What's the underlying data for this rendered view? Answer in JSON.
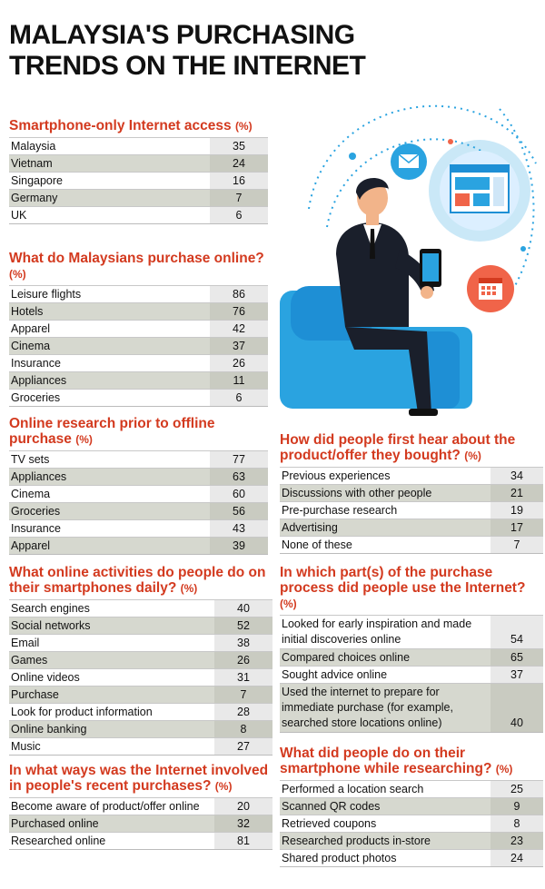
{
  "title": "MALAYSIA'S PURCHASING TRENDS ON THE INTERNET",
  "colors": {
    "title_red": "#d33a1f",
    "accent_blue": "#1e8fd5",
    "sofa_blue": "#2aa3e0"
  },
  "chart_data": [
    {
      "type": "table",
      "title": "Smartphone-only Internet access",
      "unit": "(%)",
      "rows": [
        {
          "label": "Malaysia",
          "value": "35"
        },
        {
          "label": "Vietnam",
          "value": "24"
        },
        {
          "label": "Singapore",
          "value": "16"
        },
        {
          "label": "Germany",
          "value": "7"
        },
        {
          "label": "UK",
          "value": "6"
        }
      ]
    },
    {
      "type": "table",
      "title": "What do Malaysians purchase online?",
      "unit": "(%)",
      "rows": [
        {
          "label": "Leisure flights",
          "value": "86"
        },
        {
          "label": "Hotels",
          "value": "76"
        },
        {
          "label": "Apparel",
          "value": "42"
        },
        {
          "label": "Cinema",
          "value": "37"
        },
        {
          "label": "Insurance",
          "value": "26"
        },
        {
          "label": "Appliances",
          "value": "11"
        },
        {
          "label": "Groceries",
          "value": "6"
        }
      ]
    },
    {
      "type": "table",
      "title": "Online research prior to offline purchase",
      "unit": "(%)",
      "rows": [
        {
          "label": "TV sets",
          "value": "77"
        },
        {
          "label": "Appliances",
          "value": "63"
        },
        {
          "label": "Cinema",
          "value": "60"
        },
        {
          "label": "Groceries",
          "value": "56"
        },
        {
          "label": "Insurance",
          "value": "43"
        },
        {
          "label": "Apparel",
          "value": "39"
        }
      ]
    },
    {
      "type": "table",
      "title": "What online activities do people do on their smartphones daily?",
      "unit": "(%)",
      "rows": [
        {
          "label": "Search engines",
          "value": "40"
        },
        {
          "label": "Social networks",
          "value": "52"
        },
        {
          "label": "Email",
          "value": "38"
        },
        {
          "label": "Games",
          "value": "26"
        },
        {
          "label": "Online videos",
          "value": "31"
        },
        {
          "label": "Purchase",
          "value": "7"
        },
        {
          "label": "Look for product information",
          "value": "28"
        },
        {
          "label": "Online banking",
          "value": "8"
        },
        {
          "label": "Music",
          "value": "27"
        }
      ]
    },
    {
      "type": "table",
      "title": "In what ways was the Internet involved in people's recent purchases?",
      "unit": "(%)",
      "rows": [
        {
          "label": "Become aware of product/offer online",
          "value": "20"
        },
        {
          "label": "Purchased online",
          "value": "32"
        },
        {
          "label": "Researched online",
          "value": "81"
        }
      ]
    },
    {
      "type": "table",
      "title": "How did people first hear about the product/offer they bought?",
      "unit": "(%)",
      "rows": [
        {
          "label": "Previous experiences",
          "value": "34"
        },
        {
          "label": "Discussions with other people",
          "value": "21"
        },
        {
          "label": "Pre-purchase research",
          "value": "19"
        },
        {
          "label": "Advertising",
          "value": "17"
        },
        {
          "label": "None of these",
          "value": "7"
        }
      ]
    },
    {
      "type": "table",
      "title": "In which part(s) of the purchase process did people use the Internet?",
      "unit": "(%)",
      "rows": [
        {
          "label": "Looked for early inspiration and made initial discoveries online",
          "value": "54"
        },
        {
          "label": "Compared choices online",
          "value": "65"
        },
        {
          "label": "Sought advice online",
          "value": "37"
        },
        {
          "label": "Used the internet to prepare for immediate purchase (for example, searched store locations online)",
          "value": "40"
        }
      ]
    },
    {
      "type": "table",
      "title": "What did people do on their smartphone while researching?",
      "unit": "(%)",
      "rows": [
        {
          "label": "Performed a location search",
          "value": "25"
        },
        {
          "label": "Scanned QR codes",
          "value": "9"
        },
        {
          "label": "Retrieved coupons",
          "value": "8"
        },
        {
          "label": "Researched products in-store",
          "value": "23"
        },
        {
          "label": "Shared product photos",
          "value": "24"
        }
      ]
    }
  ]
}
